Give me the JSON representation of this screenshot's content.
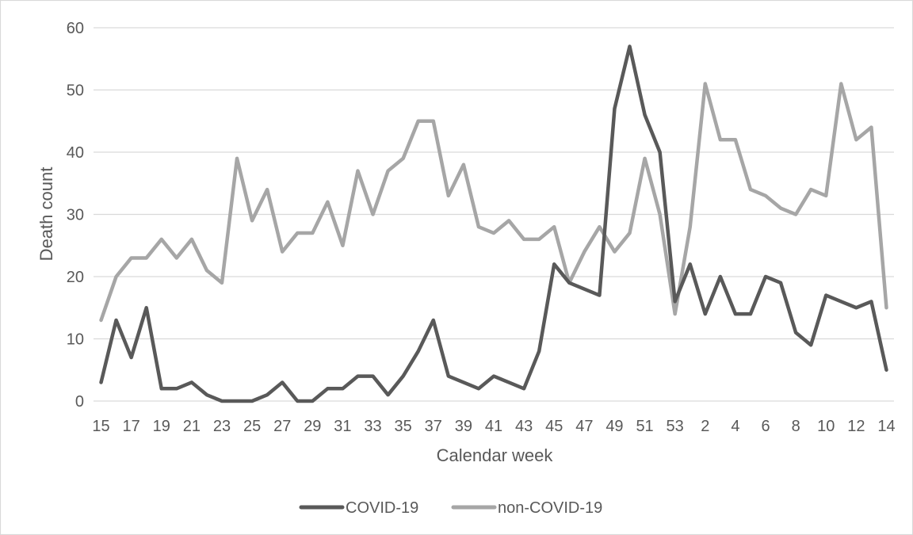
{
  "chart_data": {
    "type": "line",
    "title": "",
    "xlabel": "Calendar week",
    "ylabel": "Death count",
    "ylim": [
      0,
      60
    ],
    "yticks": [
      0,
      10,
      20,
      30,
      40,
      50,
      60
    ],
    "grid": true,
    "legend_position": "bottom",
    "categories": [
      "15",
      "16",
      "17",
      "18",
      "19",
      "20",
      "21",
      "22",
      "23",
      "24",
      "25",
      "26",
      "27",
      "28",
      "29",
      "30",
      "31",
      "32",
      "33",
      "34",
      "35",
      "36",
      "37",
      "38",
      "39",
      "40",
      "41",
      "42",
      "43",
      "44",
      "45",
      "46",
      "47",
      "48",
      "49",
      "50",
      "51",
      "52",
      "53",
      "1",
      "2",
      "3",
      "4",
      "5",
      "6",
      "7",
      "8",
      "9",
      "10",
      "11",
      "12",
      "13",
      "14"
    ],
    "tick_labels": [
      "15",
      "17",
      "19",
      "21",
      "23",
      "25",
      "27",
      "29",
      "31",
      "33",
      "35",
      "37",
      "39",
      "41",
      "43",
      "45",
      "47",
      "49",
      "51",
      "53",
      "2",
      "4",
      "6",
      "8",
      "10",
      "12",
      "14"
    ],
    "series": [
      {
        "name": "COVID-19",
        "color": "#595959",
        "values": [
          3,
          13,
          7,
          15,
          2,
          2,
          3,
          1,
          0,
          0,
          0,
          1,
          3,
          0,
          0,
          2,
          2,
          4,
          4,
          1,
          4,
          8,
          13,
          4,
          3,
          2,
          4,
          3,
          2,
          8,
          22,
          19,
          18,
          17,
          47,
          57,
          46,
          40,
          16,
          22,
          14,
          20,
          14,
          14,
          20,
          19,
          11,
          9,
          17,
          16,
          15,
          16,
          5
        ]
      },
      {
        "name": "non-COVID-19",
        "color": "#a6a6a6",
        "values": [
          13,
          20,
          23,
          23,
          26,
          23,
          26,
          21,
          19,
          39,
          29,
          34,
          24,
          27,
          27,
          32,
          25,
          37,
          30,
          37,
          39,
          45,
          45,
          33,
          38,
          28,
          27,
          29,
          26,
          26,
          28,
          19,
          24,
          28,
          24,
          27,
          39,
          30,
          14,
          28,
          51,
          42,
          42,
          34,
          33,
          31,
          30,
          34,
          33,
          51,
          42,
          44,
          15
        ]
      }
    ]
  }
}
